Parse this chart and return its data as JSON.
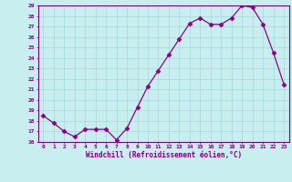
{
  "x": [
    0,
    1,
    2,
    3,
    4,
    5,
    6,
    7,
    8,
    9,
    10,
    11,
    12,
    13,
    14,
    15,
    16,
    17,
    18,
    19,
    20,
    21,
    22,
    23
  ],
  "y": [
    18.5,
    17.8,
    17.0,
    16.5,
    17.2,
    17.2,
    17.2,
    16.2,
    17.3,
    19.3,
    21.3,
    22.8,
    24.3,
    25.8,
    27.3,
    27.8,
    27.2,
    27.2,
    27.8,
    29.0,
    28.8,
    27.2,
    24.5,
    21.5
  ],
  "ylim": [
    16,
    29
  ],
  "yticks": [
    16,
    17,
    18,
    19,
    20,
    21,
    22,
    23,
    24,
    25,
    26,
    27,
    28,
    29
  ],
  "xticks": [
    0,
    1,
    2,
    3,
    4,
    5,
    6,
    7,
    8,
    9,
    10,
    11,
    12,
    13,
    14,
    15,
    16,
    17,
    18,
    19,
    20,
    21,
    22,
    23
  ],
  "xlabel": "Windchill (Refroidissement éolien,°C)",
  "line_color": "#8B008B",
  "marker": "D",
  "markersize": 2.5,
  "background_color": "#c8eef0",
  "grid_color": "#a8d8dc",
  "tick_color": "#7B0080",
  "label_color": "#7B0080",
  "spine_color": "#7B0080"
}
